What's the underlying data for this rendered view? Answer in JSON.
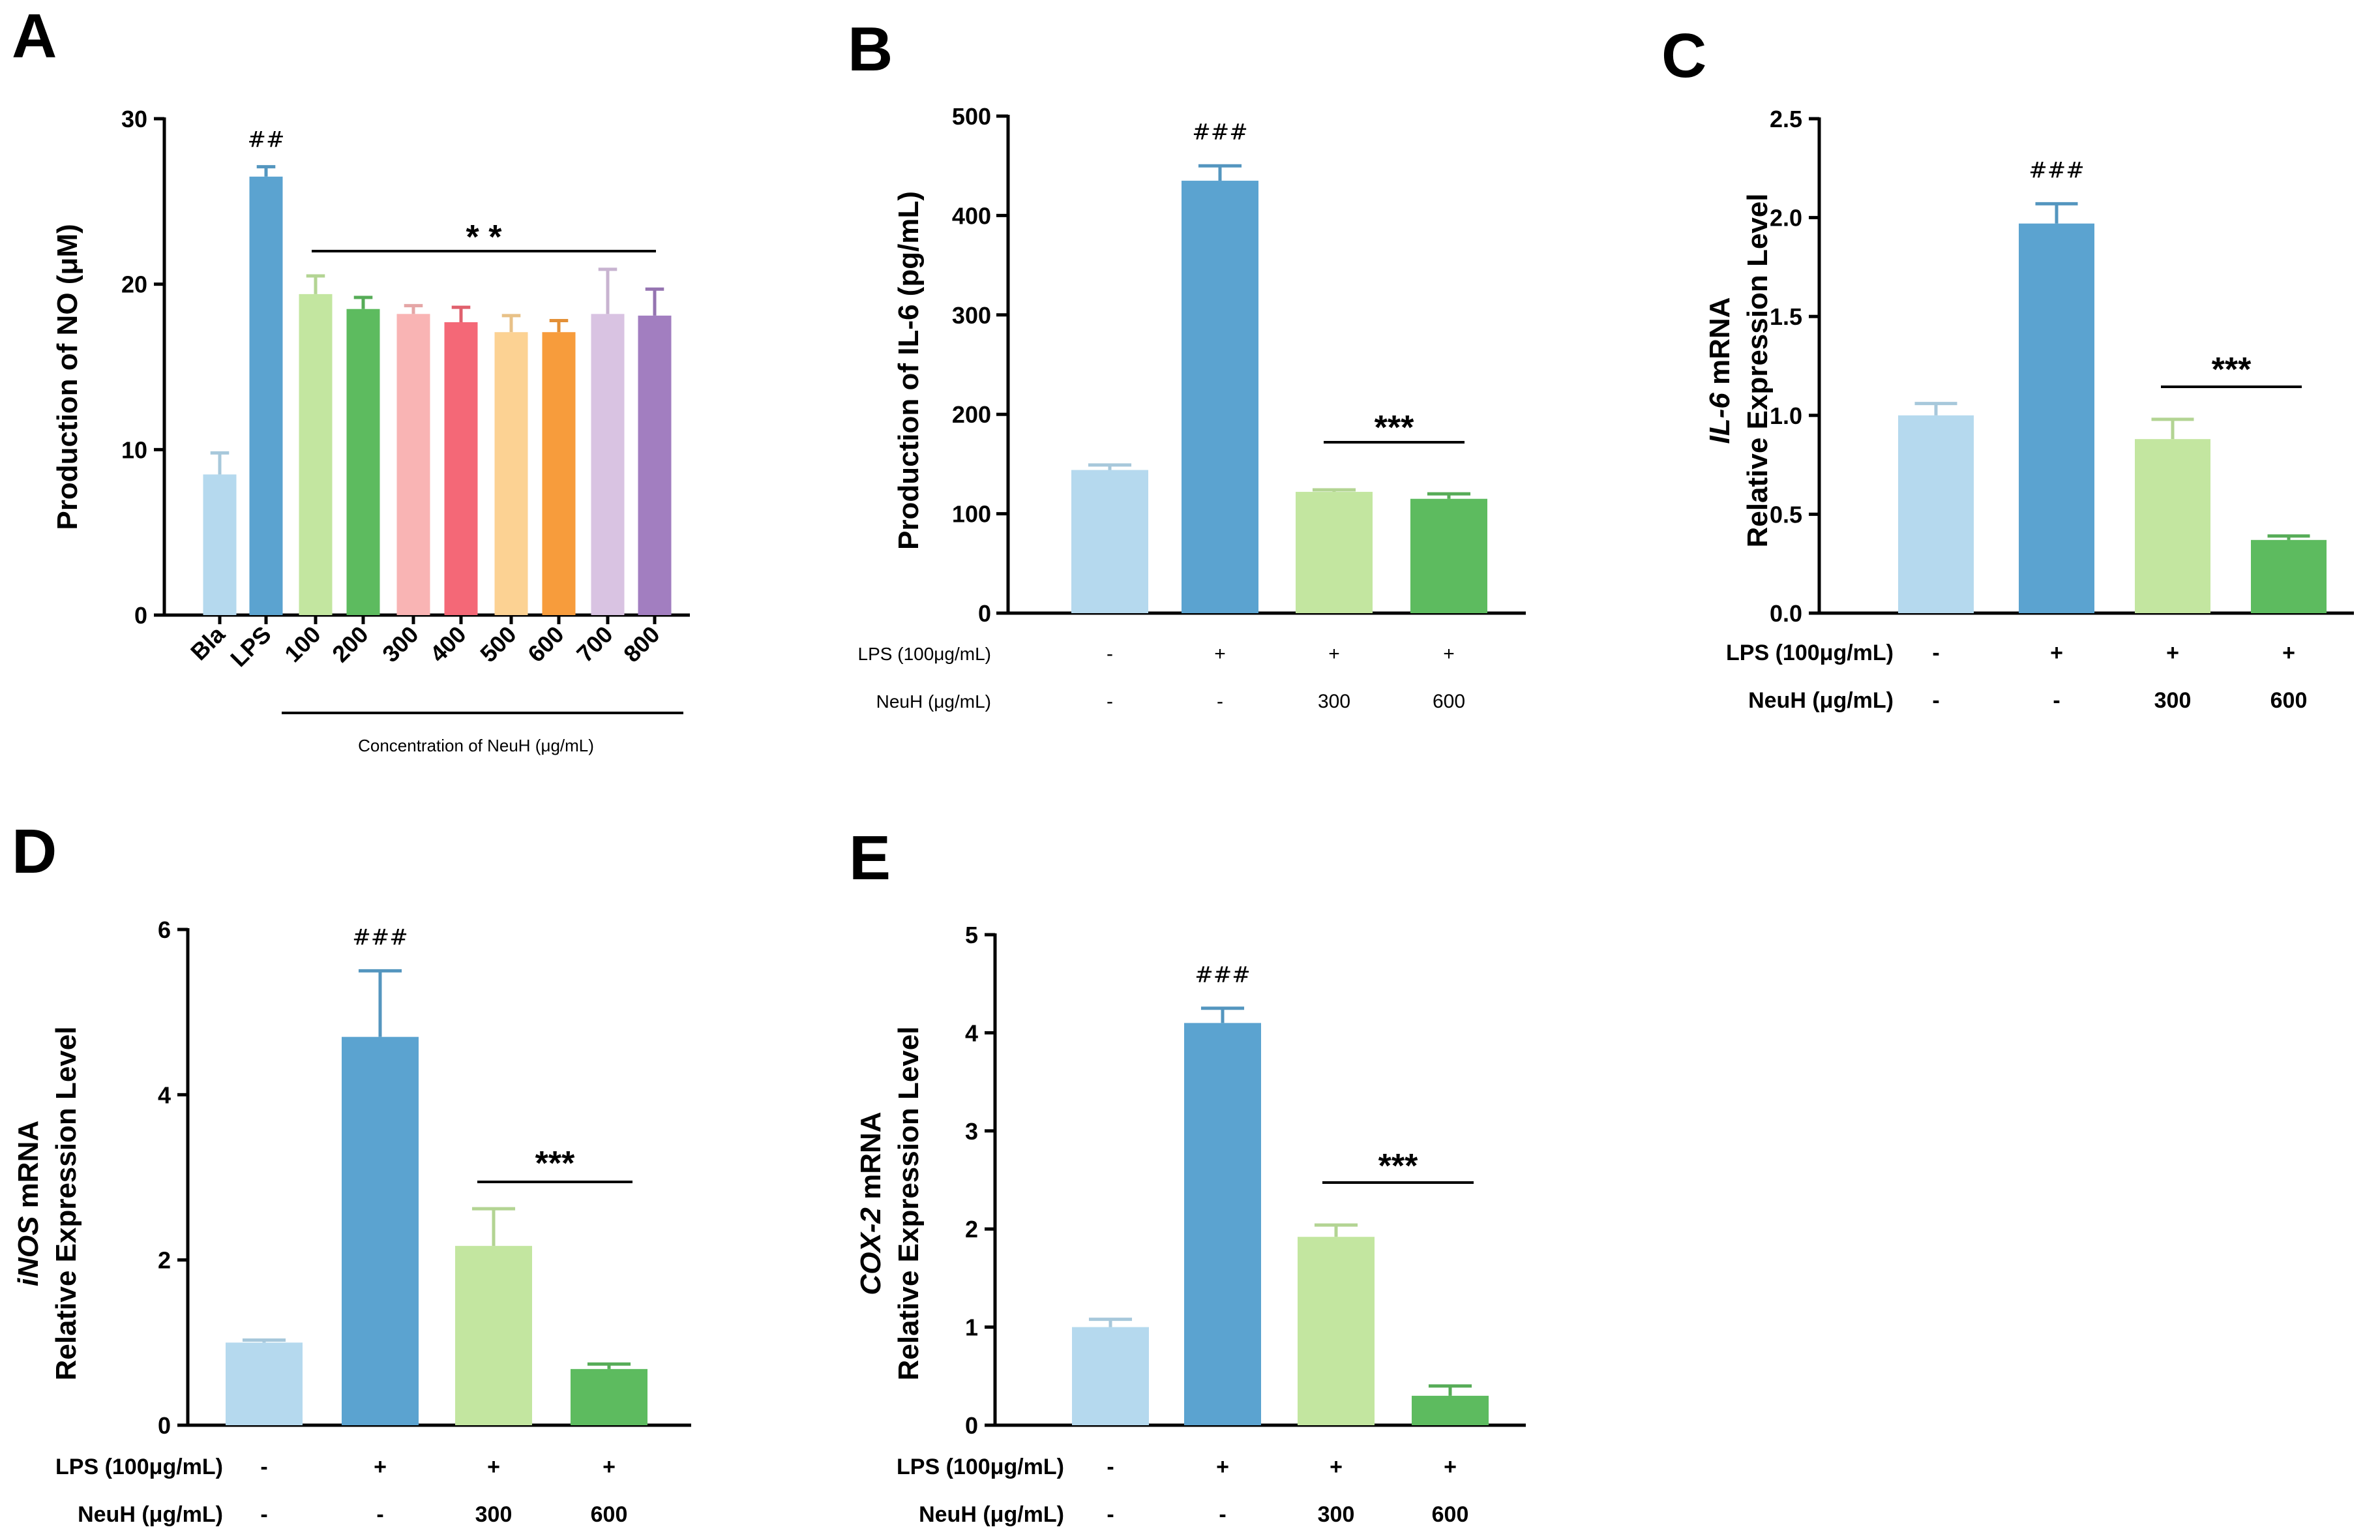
{
  "chart_data": [
    {
      "panel": "A",
      "type": "bar",
      "ylabel": "Production of  NO (μM)",
      "ylim": [
        0,
        30
      ],
      "yticks": [
        "0",
        "10",
        "20",
        "30"
      ],
      "categories": [
        "Bla",
        "LPS",
        "100",
        "200",
        "300",
        "400",
        "500",
        "600",
        "700",
        "800"
      ],
      "values": [
        8.5,
        26.5,
        19.4,
        18.5,
        18.2,
        17.7,
        17.1,
        17.1,
        18.2,
        18.1
      ],
      "errors": [
        1.3,
        0.6,
        1.1,
        0.7,
        0.5,
        0.9,
        1.0,
        0.7,
        2.7,
        1.6
      ],
      "colors": [
        "#b5d9ee",
        "#5ba3d0",
        "#c3e6a0",
        "#5dbb5f",
        "#f9b4b4",
        "#f46877",
        "#fcd293",
        "#f79c3c",
        "#d9c3e2",
        "#a27ec0"
      ],
      "annotations": [
        {
          "bar": 1,
          "text": "##"
        }
      ],
      "significance": {
        "text": "* *",
        "from": 2,
        "to": 9
      },
      "xgroup_label": "Concentration of NeuH (μg/mL)"
    },
    {
      "panel": "B",
      "type": "bar",
      "ylabel": "Production of IL-6 (pg/mL)",
      "ylim": [
        0,
        500
      ],
      "yticks": [
        "0",
        "100",
        "200",
        "300",
        "400",
        "500"
      ],
      "values": [
        144,
        435,
        122,
        115
      ],
      "errors": [
        5,
        15,
        2,
        5
      ],
      "colors": [
        "#b5d9ee",
        "#5ba3d0",
        "#c3e6a0",
        "#5dbb5f"
      ],
      "annotations": [
        {
          "bar": 1,
          "text": "###"
        }
      ],
      "significance": {
        "text": "***",
        "from": 2,
        "to": 3
      },
      "conditions": {
        "lps_label": "LPS (100μg/mL)",
        "lps": [
          "-",
          "+",
          "+",
          "+"
        ],
        "neuh_label": "NeuH (μg/mL)",
        "neuh": [
          "-",
          "-",
          "300",
          "600"
        ]
      }
    },
    {
      "panel": "C",
      "type": "bar",
      "ylabel_italic": "IL-6",
      "ylabel_rest": " mRNA",
      "ylabel2": "Relative Expression Level",
      "ylim": [
        0,
        2.5
      ],
      "yticks": [
        "0.0",
        "0.5",
        "1.0",
        "1.5",
        "2.0",
        "2.5"
      ],
      "values": [
        1.0,
        1.97,
        0.88,
        0.37
      ],
      "errors": [
        0.06,
        0.1,
        0.1,
        0.02
      ],
      "colors": [
        "#b5d9ee",
        "#5ba3d0",
        "#c3e6a0",
        "#5dbb5f"
      ],
      "annotations": [
        {
          "bar": 1,
          "text": "###"
        }
      ],
      "significance": {
        "text": "***",
        "from": 2,
        "to": 3
      },
      "conditions": {
        "lps_label": "LPS (100μg/mL)",
        "lps": [
          "-",
          "+",
          "+",
          "+"
        ],
        "neuh_label": "NeuH (μg/mL)",
        "neuh": [
          "-",
          "-",
          "300",
          "600"
        ]
      }
    },
    {
      "panel": "D",
      "type": "bar",
      "ylabel_italic": "iNOS",
      "ylabel_rest": " mRNA",
      "ylabel2": "Relative Expression Level",
      "ylim": [
        0,
        6
      ],
      "yticks": [
        "0",
        "2",
        "4",
        "6"
      ],
      "values": [
        1.0,
        4.7,
        2.17,
        0.68
      ],
      "errors": [
        0.03,
        0.8,
        0.45,
        0.06
      ],
      "colors": [
        "#b5d9ee",
        "#5ba3d0",
        "#c3e6a0",
        "#5dbb5f"
      ],
      "annotations": [
        {
          "bar": 1,
          "text": "###"
        }
      ],
      "significance": {
        "text": "***",
        "from": 2,
        "to": 3
      },
      "conditions": {
        "lps_label": "LPS (100μg/mL)",
        "lps": [
          "-",
          "+",
          "+",
          "+"
        ],
        "neuh_label": "NeuH (μg/mL)",
        "neuh": [
          "-",
          "-",
          "300",
          "600"
        ]
      }
    },
    {
      "panel": "E",
      "type": "bar",
      "ylabel_italic": "COX-2",
      "ylabel_rest": " mRNA",
      "ylabel2": "Relative Expression Level",
      "ylim": [
        0,
        5
      ],
      "yticks": [
        "0",
        "1",
        "2",
        "3",
        "4",
        "5"
      ],
      "values": [
        1.0,
        4.1,
        1.92,
        0.3
      ],
      "errors": [
        0.08,
        0.15,
        0.12,
        0.1
      ],
      "colors": [
        "#b5d9ee",
        "#5ba3d0",
        "#c3e6a0",
        "#5dbb5f"
      ],
      "annotations": [
        {
          "bar": 1,
          "text": "###"
        }
      ],
      "significance": {
        "text": "***",
        "from": 2,
        "to": 3
      },
      "conditions": {
        "lps_label": "LPS (100μg/mL)",
        "lps": [
          "-",
          "+",
          "+",
          "+"
        ],
        "neuh_label": "NeuH (μg/mL)",
        "neuh": [
          "-",
          "-",
          "300",
          "600"
        ]
      }
    }
  ]
}
